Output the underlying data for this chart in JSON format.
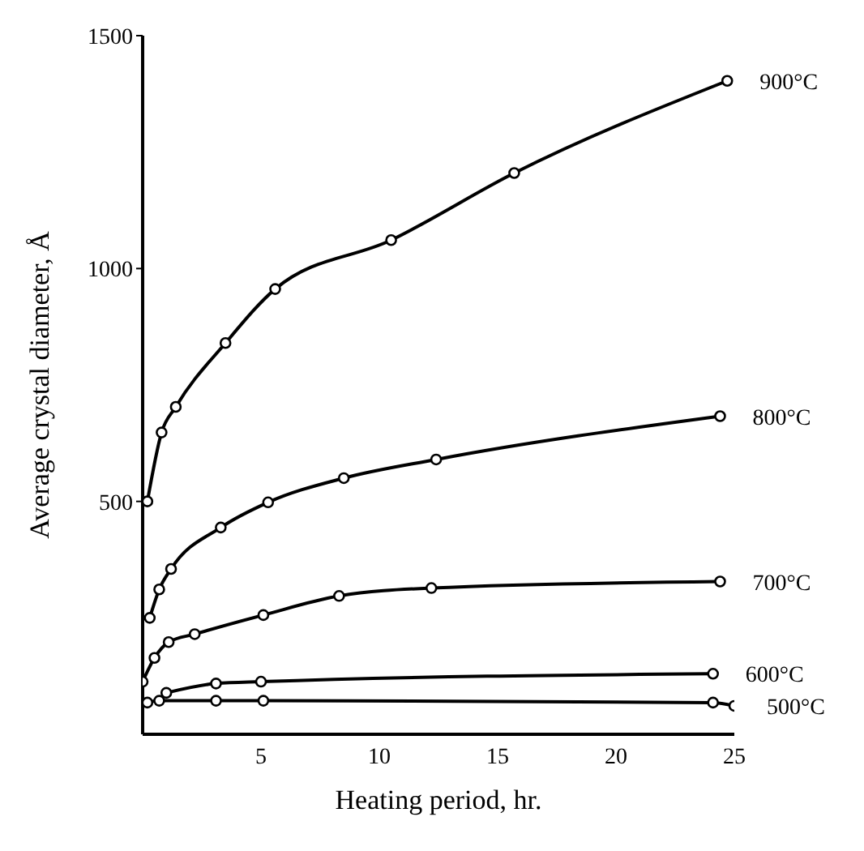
{
  "chart_data": {
    "type": "line",
    "xlabel": "Heating period, hr.",
    "ylabel": "Average crystal diameter, Å",
    "xlim": [
      0,
      25
    ],
    "xticks": [
      5,
      10,
      15,
      20,
      25
    ],
    "ylim": [
      0,
      1500
    ],
    "yticks": [
      500,
      1000,
      1500
    ],
    "grid": false,
    "legend": false,
    "marker": "circle",
    "line_style": "solid",
    "series": [
      {
        "name": "900°C",
        "color": "#000000",
        "x": [
          0.2,
          0.8,
          1.4,
          3.5,
          5.6,
          10.5,
          15.7,
          24.7
        ],
        "values": [
          500,
          648,
          703,
          840,
          956,
          1061,
          1205,
          1403
        ]
      },
      {
        "name": "800°C",
        "color": "#000000",
        "x": [
          0.3,
          0.7,
          1.2,
          3.3,
          5.3,
          8.5,
          12.4,
          24.4
        ],
        "values": [
          250,
          311,
          355,
          444,
          498,
          550,
          590,
          683
        ]
      },
      {
        "name": "700°C",
        "color": "#000000",
        "x": [
          0,
          0.5,
          1.1,
          2.2,
          5.1,
          8.3,
          12.2,
          24.4
        ],
        "values": [
          113,
          164,
          198,
          215,
          256,
          297,
          314,
          328
        ]
      },
      {
        "name": "600°C",
        "color": "#000000",
        "x": [
          1.0,
          3.1,
          5.0,
          24.1
        ],
        "values": [
          89,
          109,
          113,
          130
        ]
      },
      {
        "name": "500°C",
        "color": "#000000",
        "x": [
          0.2,
          0.7,
          3.1,
          5.1,
          24.1,
          25
        ],
        "values": [
          68,
          72,
          72,
          72,
          68,
          61
        ]
      }
    ]
  }
}
